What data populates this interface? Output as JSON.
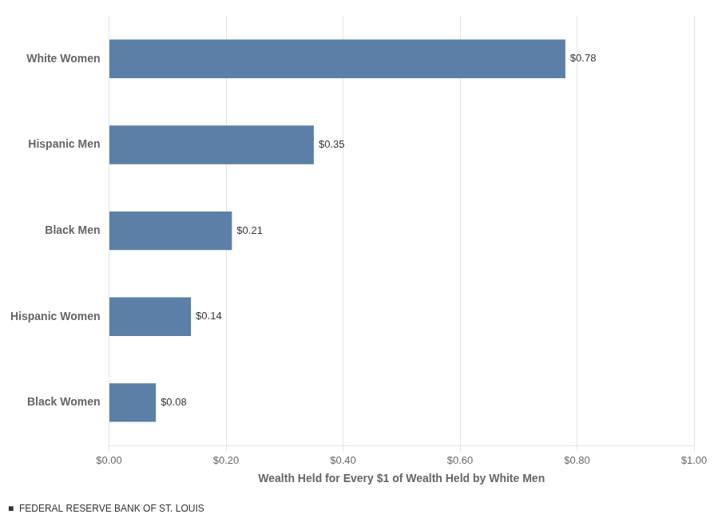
{
  "chart_data": {
    "type": "bar",
    "orientation": "horizontal",
    "categories": [
      "Black Women",
      "Hispanic Women",
      "Black Men",
      "Hispanic Men",
      "White Women"
    ],
    "values": [
      0.08,
      0.14,
      0.21,
      0.35,
      0.78
    ],
    "value_labels": [
      "$0.08",
      "$0.14",
      "$0.21",
      "$0.35",
      "$0.78"
    ],
    "data_labels": true,
    "color": "#5b7fa6",
    "x_label": "Wealth Held for Every $1 of Wealth Held by White Men",
    "xlim": [
      0,
      1.0
    ],
    "xticks": [
      {
        "value": 0.0,
        "label": "$0.00"
      },
      {
        "value": 0.2,
        "label": "$0.20"
      },
      {
        "value": 0.4,
        "label": "$0.40"
      },
      {
        "value": 0.6,
        "label": "$0.60"
      },
      {
        "value": 0.8,
        "label": "$0.80"
      },
      {
        "value": 1.0,
        "label": "$1.00"
      }
    ],
    "grid": "x",
    "annotations": [
      "■  FEDERAL RESERVE BANK OF ST. LOUIS"
    ]
  }
}
